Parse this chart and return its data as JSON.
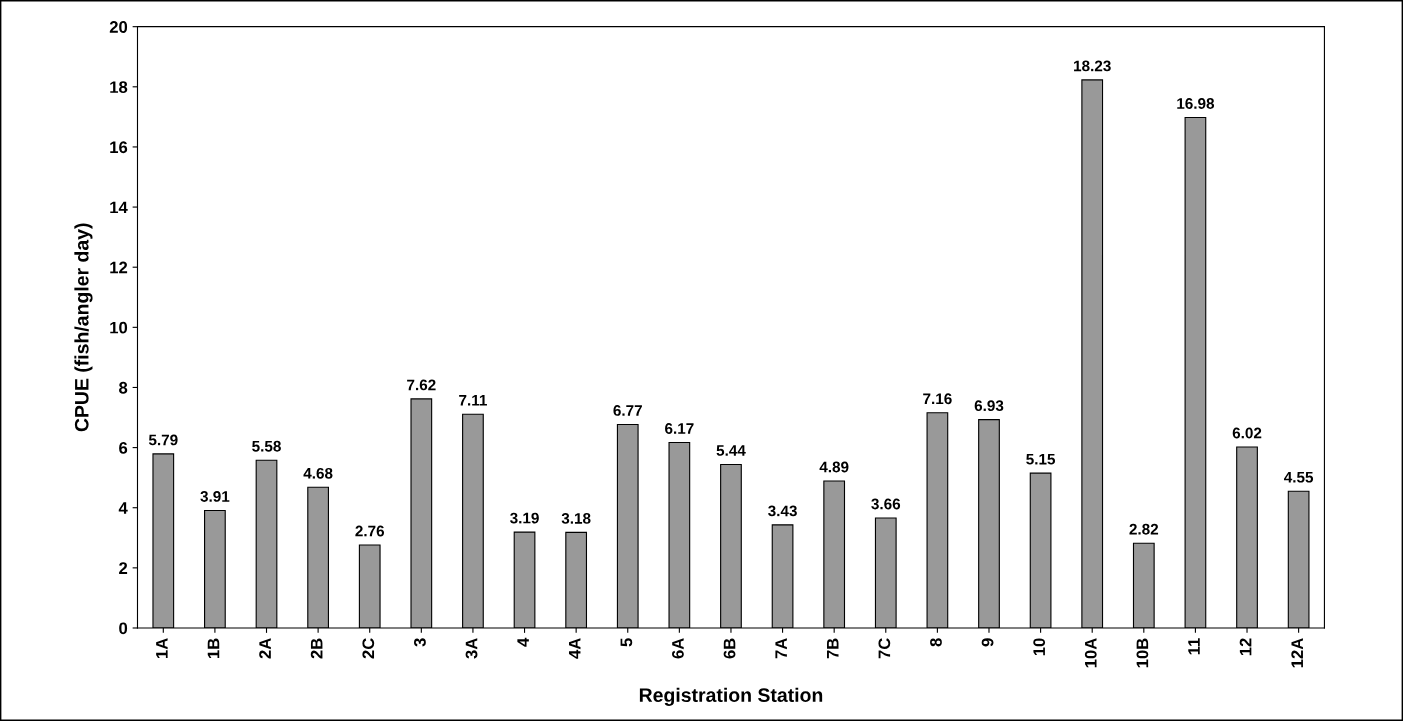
{
  "chart_data": {
    "type": "bar",
    "xlabel": "Registration Station",
    "ylabel": "CPUE (fish/angler day)",
    "categories": [
      "1A",
      "1B",
      "2A",
      "2B",
      "2C",
      "3",
      "3A",
      "4",
      "4A",
      "5",
      "6A",
      "6B",
      "7A",
      "7B",
      "7C",
      "8",
      "9",
      "10",
      "10A",
      "10B",
      "11",
      "12",
      "12A"
    ],
    "values": [
      5.79,
      3.91,
      5.58,
      4.68,
      2.76,
      7.62,
      7.11,
      3.19,
      3.18,
      6.77,
      6.17,
      5.44,
      3.43,
      4.89,
      3.66,
      7.16,
      6.93,
      5.15,
      18.23,
      2.82,
      16.98,
      6.02,
      4.55
    ],
    "color": "#999999",
    "ylim": [
      0,
      20
    ],
    "yticks": [
      0,
      2,
      4,
      6,
      8,
      10,
      12,
      14,
      16,
      18,
      20
    ],
    "grid": false,
    "data_labels": true
  }
}
